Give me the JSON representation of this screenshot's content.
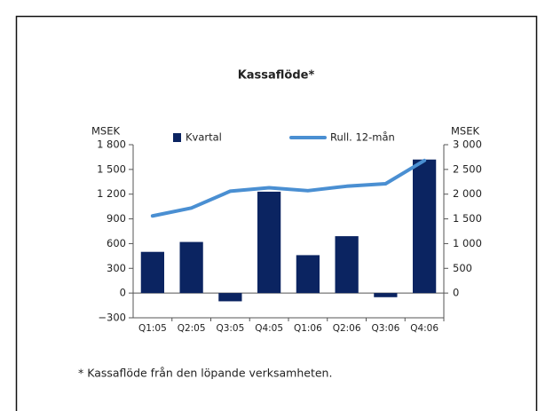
{
  "chart_data": {
    "type": "bar",
    "title": "Kassaflöde*",
    "ylabel": "MSEK",
    "y2label": "MSEK",
    "categories": [
      "Q1:05",
      "Q2:05",
      "Q3:05",
      "Q4:05",
      "Q1:06",
      "Q2:06",
      "Q3:06",
      "Q4:06"
    ],
    "series": [
      {
        "name": "Kvartal",
        "type": "bar",
        "color": "#0b2461",
        "values": [
          500,
          620,
          -100,
          1230,
          460,
          690,
          -50,
          1620
        ]
      },
      {
        "name": "Rull. 12-mån",
        "type": "line",
        "axis": "y2",
        "color": "#4a8fd2",
        "values": [
          1560,
          1720,
          2060,
          2130,
          2070,
          2160,
          2210,
          2680
        ]
      }
    ],
    "ylim": [
      -300,
      1800
    ],
    "yticks": [
      {
        "value": -300,
        "label": "−300"
      },
      0,
      300,
      600,
      900,
      {
        "value": 1200,
        "label": "1 200"
      },
      {
        "value": 1500,
        "label": "1 500"
      },
      {
        "value": 1800,
        "label": "1 800"
      }
    ],
    "y2lim": [
      -500,
      3000
    ],
    "y2ticks": [
      0,
      500,
      {
        "value": 1000,
        "label": "1 000"
      },
      {
        "value": 1500,
        "label": "1 500"
      },
      {
        "value": 2000,
        "label": "2 000"
      },
      {
        "value": 2500,
        "label": "2 500"
      },
      {
        "value": 3000,
        "label": "3 000"
      }
    ],
    "footnote": "* Kassaflöde från den löpande verksamheten."
  }
}
